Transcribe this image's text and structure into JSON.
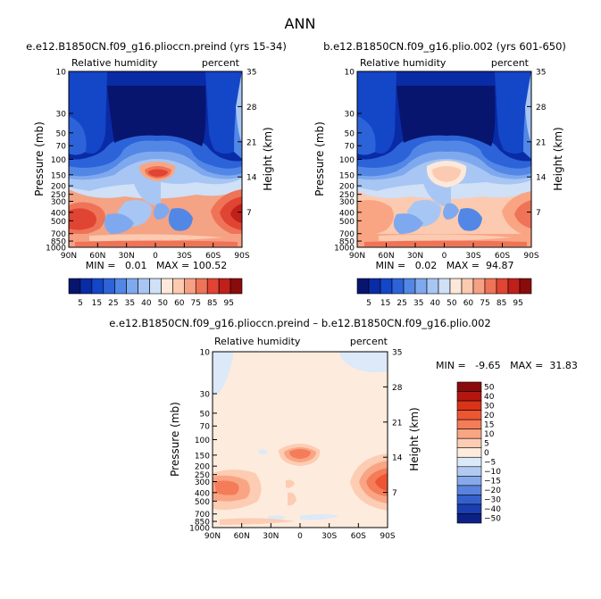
{
  "title": "ANN",
  "chart_data": [
    {
      "type": "contour",
      "panel": "top-left",
      "title": "e.e12.B1850CN.f09_g16.plioccn.preind (yrs 15-34)",
      "variable": "Relative humidity",
      "units": "percent",
      "xlabel": "",
      "ylabel": "Pressure (mb)",
      "y2label": "Height (km)",
      "x_ticks": [
        "90N",
        "60N",
        "30N",
        "0",
        "30S",
        "60S",
        "90S"
      ],
      "y_ticks": [
        "10",
        "30",
        "50",
        "70",
        "100",
        "150",
        "200",
        "250",
        "300",
        "400",
        "500",
        "700",
        "850",
        "1000"
      ],
      "y2_ticks": [
        "35",
        "28",
        "21",
        "14",
        "7"
      ],
      "min_label": "MIN =   0.01   MAX = 100.52",
      "min": 0.01,
      "max": 100.52,
      "colorbar_labels": [
        "5",
        "15",
        "25",
        "35",
        "40",
        "50",
        "60",
        "75",
        "85",
        "95"
      ]
    },
    {
      "type": "contour",
      "panel": "top-right",
      "title": "b.e12.B1850CN.f09_g16.plio.002 (yrs 601-650)",
      "variable": "Relative humidity",
      "units": "percent",
      "xlabel": "",
      "ylabel": "Pressure (mb)",
      "y2label": "Height (km)",
      "x_ticks": [
        "90N",
        "60N",
        "30N",
        "0",
        "30S",
        "60S",
        "90S"
      ],
      "y_ticks": [
        "10",
        "30",
        "50",
        "70",
        "100",
        "150",
        "200",
        "250",
        "300",
        "400",
        "500",
        "700",
        "850",
        "1000"
      ],
      "y2_ticks": [
        "35",
        "28",
        "21",
        "14",
        "7"
      ],
      "min_label": "MIN =   0.02   MAX =  94.87",
      "min": 0.02,
      "max": 94.87,
      "colorbar_labels": [
        "5",
        "15",
        "25",
        "35",
        "40",
        "50",
        "60",
        "75",
        "85",
        "95"
      ]
    },
    {
      "type": "contour",
      "panel": "bottom-difference",
      "title": "e.e12.B1850CN.f09_g16.plioccn.preind – b.e12.B1850CN.f09_g16.plio.002",
      "variable": "Relative humidity",
      "units": "percent",
      "xlabel": "",
      "ylabel": "Pressure (mb)",
      "y2label": "Height (km)",
      "x_ticks": [
        "90N",
        "60N",
        "30N",
        "0",
        "30S",
        "60S",
        "90S"
      ],
      "y_ticks": [
        "10",
        "30",
        "50",
        "70",
        "100",
        "150",
        "200",
        "250",
        "300",
        "400",
        "500",
        "700",
        "850",
        "1000"
      ],
      "y2_ticks": [
        "35",
        "28",
        "21",
        "14",
        "7"
      ],
      "min_label": "MIN =   -9.65   MAX =  31.83",
      "min": -9.65,
      "max": 31.83,
      "colorbar_labels": [
        "50",
        "40",
        "30",
        "20",
        "15",
        "10",
        "5",
        "0",
        "−5",
        "−10",
        "−15",
        "−20",
        "−30",
        "−40",
        "−50"
      ]
    }
  ],
  "colors": {
    "rh_scale": [
      "#08156e",
      "#0a2ba6",
      "#1446c8",
      "#2d63d8",
      "#5287e6",
      "#7fa9ee",
      "#a8c6f3",
      "#cfe0f7",
      "#fde8da",
      "#fbcab0",
      "#f6a184",
      "#ef7357",
      "#e04433",
      "#c01f1a",
      "#8a0b0b"
    ],
    "diff_scale": [
      "#8a0b0b",
      "#b3170f",
      "#d93318",
      "#ec5632",
      "#f47c58",
      "#f9a584",
      "#fcccb3",
      "#fdebdd",
      "#dce9f8",
      "#b0caf2",
      "#86a9ea",
      "#5a83dd",
      "#3560cc",
      "#1b3eb0",
      "#0b2185"
    ]
  }
}
